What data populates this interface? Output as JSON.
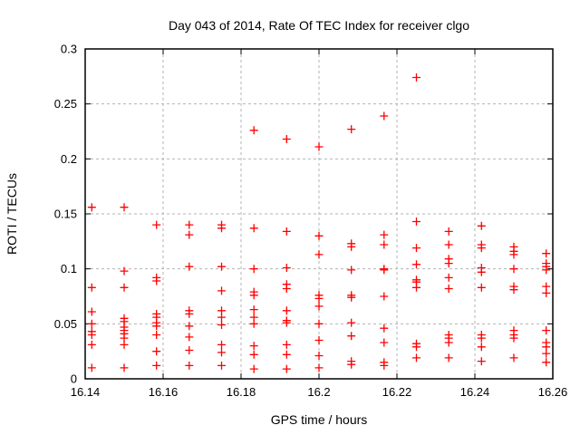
{
  "chart_data": {
    "type": "scatter",
    "title": "Day 043 of 2014, Rate Of TEC Index for receiver clgo",
    "xlabel": "GPS time / hours",
    "ylabel": "ROTI / TECUs",
    "xlim": [
      16.14,
      16.26
    ],
    "ylim": [
      0,
      0.3
    ],
    "x_ticks": [
      {
        "value": 16.14,
        "label": "16.14"
      },
      {
        "value": 16.16,
        "label": "16.16"
      },
      {
        "value": 16.18,
        "label": "16.18"
      },
      {
        "value": 16.2,
        "label": "16.2"
      },
      {
        "value": 16.22,
        "label": "16.22"
      },
      {
        "value": 16.24,
        "label": "16.24"
      },
      {
        "value": 16.26,
        "label": "16.26"
      }
    ],
    "y_ticks": [
      {
        "value": 0.0,
        "label": "0"
      },
      {
        "value": 0.05,
        "label": "0.05"
      },
      {
        "value": 0.1,
        "label": "0.1"
      },
      {
        "value": 0.15,
        "label": "0.15"
      },
      {
        "value": 0.2,
        "label": "0.2"
      },
      {
        "value": 0.25,
        "label": "0.25"
      },
      {
        "value": 0.3,
        "label": "0.3"
      }
    ],
    "grid": "dashed",
    "legend": "none",
    "marker": "plus",
    "colors": {
      "marker": "#ff0000",
      "grid": "#b3b3b3",
      "axis": "#000000",
      "background": "#ffffff"
    },
    "series": [
      {
        "points": [
          [
            16.1417,
            0.156
          ],
          [
            16.1417,
            0.083
          ],
          [
            16.1417,
            0.061
          ],
          [
            16.1417,
            0.05
          ],
          [
            16.1417,
            0.043
          ],
          [
            16.1417,
            0.04
          ],
          [
            16.1417,
            0.031
          ],
          [
            16.1417,
            0.01
          ],
          [
            16.15,
            0.156
          ],
          [
            16.15,
            0.098
          ],
          [
            16.15,
            0.083
          ],
          [
            16.15,
            0.055
          ],
          [
            16.15,
            0.052
          ],
          [
            16.15,
            0.047
          ],
          [
            16.15,
            0.044
          ],
          [
            16.15,
            0.041
          ],
          [
            16.15,
            0.037
          ],
          [
            16.15,
            0.031
          ],
          [
            16.15,
            0.01
          ],
          [
            16.1583,
            0.14
          ],
          [
            16.1583,
            0.092
          ],
          [
            16.1583,
            0.089
          ],
          [
            16.1583,
            0.059
          ],
          [
            16.1583,
            0.056
          ],
          [
            16.1583,
            0.051
          ],
          [
            16.1583,
            0.048
          ],
          [
            16.1583,
            0.04
          ],
          [
            16.1583,
            0.025
          ],
          [
            16.1583,
            0.012
          ],
          [
            16.1667,
            0.14
          ],
          [
            16.1667,
            0.131
          ],
          [
            16.1667,
            0.102
          ],
          [
            16.1667,
            0.062
          ],
          [
            16.1667,
            0.059
          ],
          [
            16.1667,
            0.048
          ],
          [
            16.1667,
            0.038
          ],
          [
            16.1667,
            0.026
          ],
          [
            16.1667,
            0.012
          ],
          [
            16.175,
            0.14
          ],
          [
            16.175,
            0.137
          ],
          [
            16.175,
            0.102
          ],
          [
            16.175,
            0.08
          ],
          [
            16.175,
            0.062
          ],
          [
            16.175,
            0.056
          ],
          [
            16.175,
            0.049
          ],
          [
            16.175,
            0.031
          ],
          [
            16.175,
            0.024
          ],
          [
            16.175,
            0.012
          ],
          [
            16.1833,
            0.226
          ],
          [
            16.1833,
            0.137
          ],
          [
            16.1833,
            0.1
          ],
          [
            16.1833,
            0.079
          ],
          [
            16.1833,
            0.076
          ],
          [
            16.1833,
            0.063
          ],
          [
            16.1833,
            0.056
          ],
          [
            16.1833,
            0.05
          ],
          [
            16.1833,
            0.03
          ],
          [
            16.1833,
            0.022
          ],
          [
            16.1833,
            0.009
          ],
          [
            16.1917,
            0.218
          ],
          [
            16.1917,
            0.134
          ],
          [
            16.1917,
            0.101
          ],
          [
            16.1917,
            0.086
          ],
          [
            16.1917,
            0.082
          ],
          [
            16.1917,
            0.062
          ],
          [
            16.1917,
            0.053
          ],
          [
            16.1917,
            0.051
          ],
          [
            16.1917,
            0.031
          ],
          [
            16.1917,
            0.022
          ],
          [
            16.1917,
            0.009
          ],
          [
            16.2,
            0.211
          ],
          [
            16.2,
            0.13
          ],
          [
            16.2,
            0.113
          ],
          [
            16.2,
            0.076
          ],
          [
            16.2,
            0.073
          ],
          [
            16.2,
            0.066
          ],
          [
            16.2,
            0.05
          ],
          [
            16.2,
            0.035
          ],
          [
            16.2,
            0.021
          ],
          [
            16.2,
            0.01
          ],
          [
            16.2083,
            0.227
          ],
          [
            16.2083,
            0.123
          ],
          [
            16.2083,
            0.12
          ],
          [
            16.2083,
            0.099
          ],
          [
            16.2083,
            0.076
          ],
          [
            16.2083,
            0.074
          ],
          [
            16.2083,
            0.051
          ],
          [
            16.2083,
            0.039
          ],
          [
            16.2083,
            0.016
          ],
          [
            16.2083,
            0.013
          ],
          [
            16.2167,
            0.239
          ],
          [
            16.2167,
            0.131
          ],
          [
            16.2167,
            0.122
          ],
          [
            16.2167,
            0.1
          ],
          [
            16.2167,
            0.099
          ],
          [
            16.2167,
            0.075
          ],
          [
            16.2167,
            0.046
          ],
          [
            16.2167,
            0.033
          ],
          [
            16.2167,
            0.015
          ],
          [
            16.2167,
            0.012
          ],
          [
            16.225,
            0.274
          ],
          [
            16.225,
            0.143
          ],
          [
            16.225,
            0.119
          ],
          [
            16.225,
            0.104
          ],
          [
            16.225,
            0.09
          ],
          [
            16.225,
            0.088
          ],
          [
            16.225,
            0.083
          ],
          [
            16.225,
            0.032
          ],
          [
            16.225,
            0.029
          ],
          [
            16.225,
            0.019
          ],
          [
            16.2333,
            0.134
          ],
          [
            16.2333,
            0.122
          ],
          [
            16.2333,
            0.109
          ],
          [
            16.2333,
            0.105
          ],
          [
            16.2333,
            0.092
          ],
          [
            16.2333,
            0.082
          ],
          [
            16.2333,
            0.04
          ],
          [
            16.2333,
            0.037
          ],
          [
            16.2333,
            0.033
          ],
          [
            16.2333,
            0.019
          ],
          [
            16.2417,
            0.139
          ],
          [
            16.2417,
            0.122
          ],
          [
            16.2417,
            0.119
          ],
          [
            16.2417,
            0.101
          ],
          [
            16.2417,
            0.097
          ],
          [
            16.2417,
            0.083
          ],
          [
            16.2417,
            0.04
          ],
          [
            16.2417,
            0.037
          ],
          [
            16.2417,
            0.029
          ],
          [
            16.2417,
            0.016
          ],
          [
            16.25,
            0.12
          ],
          [
            16.25,
            0.116
          ],
          [
            16.25,
            0.113
          ],
          [
            16.25,
            0.1
          ],
          [
            16.25,
            0.084
          ],
          [
            16.25,
            0.081
          ],
          [
            16.25,
            0.044
          ],
          [
            16.25,
            0.04
          ],
          [
            16.25,
            0.037
          ],
          [
            16.25,
            0.019
          ],
          [
            16.2583,
            0.114
          ],
          [
            16.2583,
            0.105
          ],
          [
            16.2583,
            0.102
          ],
          [
            16.2583,
            0.099
          ],
          [
            16.2583,
            0.084
          ],
          [
            16.2583,
            0.078
          ],
          [
            16.2583,
            0.044
          ],
          [
            16.2583,
            0.033
          ],
          [
            16.2583,
            0.029
          ],
          [
            16.2583,
            0.023
          ],
          [
            16.2583,
            0.015
          ]
        ]
      }
    ]
  }
}
